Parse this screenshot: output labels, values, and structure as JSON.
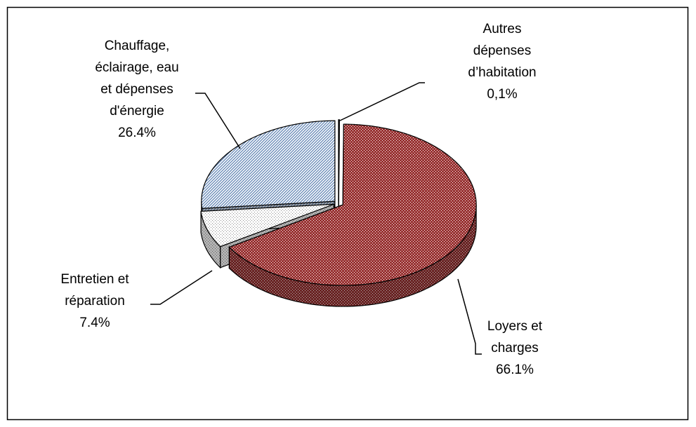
{
  "chart_data": {
    "type": "pie3d",
    "categories": [
      [
        "Autres",
        "dépenses",
        "d’habitation"
      ],
      [
        "Loyers et",
        "charges"
      ],
      [
        "Entretien et",
        "réparation"
      ],
      [
        "Chauffage,",
        "éclairage, eau",
        "et dépenses",
        "d'énergie"
      ]
    ],
    "values": [
      0.1,
      66.1,
      7.4,
      26.4
    ],
    "value_labels": [
      "0,1%",
      "66.1%",
      "7.4%",
      "26.4%"
    ],
    "colors": [
      "#808080",
      "#993333",
      "#8c8c8c",
      "#5f83b3"
    ]
  }
}
